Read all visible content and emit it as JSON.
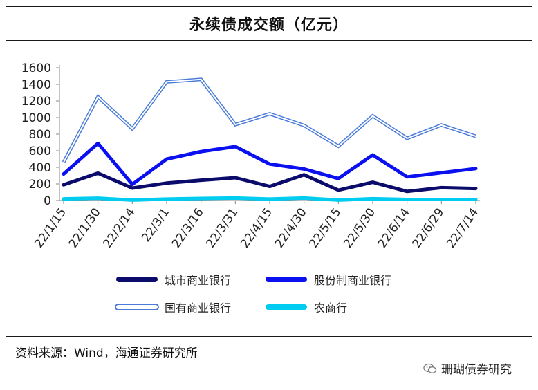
{
  "title": "永续债成交额（亿元）",
  "source": "资料来源：Wind，海通证券研究所",
  "watermark": "珊瑚债券研究",
  "watermark_icon": "wechat-icon",
  "chart_data": {
    "type": "line",
    "title": "永续债成交额（亿元）",
    "xlabel": "",
    "ylabel": "",
    "ylim": [
      0,
      1600
    ],
    "yticks": [
      0,
      200,
      400,
      600,
      800,
      1000,
      1200,
      1400,
      1600
    ],
    "grid": false,
    "legend_position": "bottom",
    "categories": [
      "22/1/15",
      "22/1/30",
      "22/2/14",
      "22/3/1",
      "22/3/16",
      "22/3/31",
      "22/4/15",
      "22/4/30",
      "22/5/15",
      "22/5/30",
      "22/6/14",
      "22/6/29",
      "22/7/14"
    ],
    "series": [
      {
        "name": "城市商业银行",
        "color": "#0b0b6b",
        "style": "solid",
        "values": [
          190,
          330,
          150,
          210,
          245,
          275,
          170,
          310,
          125,
          220,
          110,
          155,
          145
        ]
      },
      {
        "name": "股份制商业银行",
        "color": "#0a10f0",
        "style": "solid",
        "values": [
          320,
          690,
          195,
          500,
          590,
          650,
          440,
          380,
          265,
          550,
          285,
          335,
          385
        ]
      },
      {
        "name": "国有商业银行",
        "color": "#4a7bd8",
        "style": "double",
        "values": [
          460,
          1250,
          865,
          1430,
          1460,
          915,
          1045,
          905,
          655,
          1020,
          750,
          910,
          775
        ]
      },
      {
        "name": "农商行",
        "color": "#00ccf0",
        "style": "solid",
        "values": [
          20,
          28,
          5,
          18,
          25,
          30,
          18,
          30,
          5,
          22,
          12,
          12,
          12
        ]
      }
    ]
  }
}
